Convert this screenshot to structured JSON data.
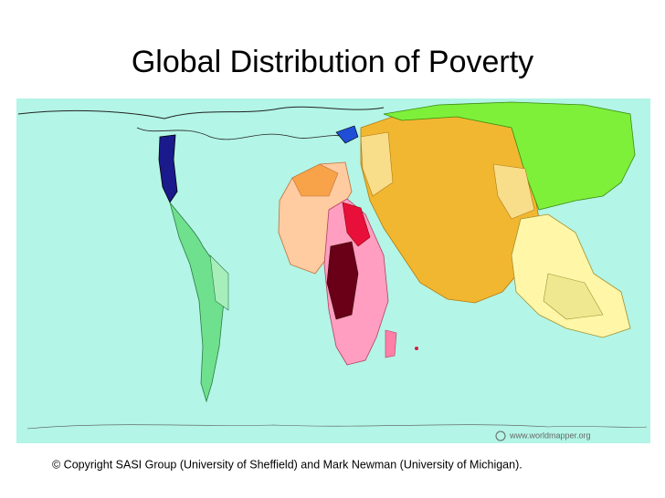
{
  "title": "Global Distribution of Poverty",
  "map": {
    "watermark": "www.worldmapper.org"
  },
  "footer": {
    "copyright": "© Copyright SASI Group (University of Sheffield) and Mark Newman (University of Michigan)."
  }
}
